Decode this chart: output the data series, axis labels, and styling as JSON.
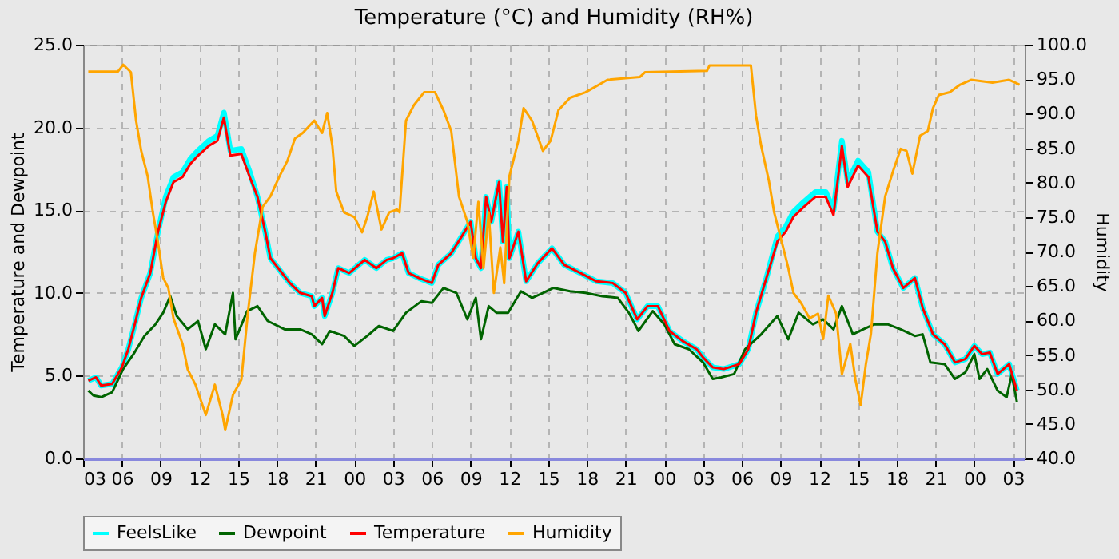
{
  "chart_data": {
    "type": "line",
    "title": "Temperature (°C) and Humidity (RH%)",
    "ylabel": "Temperature and Dewpoint",
    "y2label": "Humidity",
    "xlim": [
      3,
      75.9
    ],
    "xticks": [
      {
        "value": 3,
        "label": "03"
      },
      {
        "value": 6,
        "label": "06"
      },
      {
        "value": 9,
        "label": "09"
      },
      {
        "value": 12,
        "label": "12"
      },
      {
        "value": 15,
        "label": "15"
      },
      {
        "value": 18,
        "label": "18"
      },
      {
        "value": 21,
        "label": "21"
      },
      {
        "value": 24,
        "label": "00"
      },
      {
        "value": 27,
        "label": "03"
      },
      {
        "value": 30,
        "label": "06"
      },
      {
        "value": 33,
        "label": "09"
      },
      {
        "value": 36,
        "label": "12"
      },
      {
        "value": 39,
        "label": "15"
      },
      {
        "value": 42,
        "label": "18"
      },
      {
        "value": 45,
        "label": "21"
      },
      {
        "value": 48,
        "label": "00"
      },
      {
        "value": 51,
        "label": "03"
      },
      {
        "value": 54,
        "label": "06"
      },
      {
        "value": 57,
        "label": "09"
      },
      {
        "value": 60,
        "label": "12"
      },
      {
        "value": 63,
        "label": "15"
      },
      {
        "value": 66,
        "label": "18"
      },
      {
        "value": 69,
        "label": "21"
      },
      {
        "value": 72,
        "label": "00"
      },
      {
        "value": 75,
        "label": "03"
      }
    ],
    "ylim": [
      0,
      25
    ],
    "yticks": [
      {
        "value": 0,
        "label": "0.0"
      },
      {
        "value": 5,
        "label": "5.0"
      },
      {
        "value": 10,
        "label": "10.0"
      },
      {
        "value": 15,
        "label": "15.0"
      },
      {
        "value": 20,
        "label": "20.0"
      },
      {
        "value": 25,
        "label": "25.0"
      }
    ],
    "y2lim": [
      40,
      100
    ],
    "y2ticks": [
      {
        "value": 40,
        "label": "40.0"
      },
      {
        "value": 45,
        "label": "45.0"
      },
      {
        "value": 50,
        "label": "50.0"
      },
      {
        "value": 55,
        "label": "55.0"
      },
      {
        "value": 60,
        "label": "60.0"
      },
      {
        "value": 65,
        "label": "65.0"
      },
      {
        "value": 70,
        "label": "70.0"
      },
      {
        "value": 75,
        "label": "75.0"
      },
      {
        "value": 80,
        "label": "80.0"
      },
      {
        "value": 85,
        "label": "85.0"
      },
      {
        "value": 90,
        "label": "90.0"
      },
      {
        "value": 95,
        "label": "95.0"
      },
      {
        "value": 100,
        "label": "100.0"
      }
    ],
    "grid": true,
    "legend": "bottom",
    "series": [
      {
        "name": "FeelsLike",
        "color": "#00ffff",
        "x": [
          3.4,
          4,
          4.4,
          5.25,
          6,
          6.5,
          7,
          7.5,
          8.2,
          8.8,
          9.4,
          10,
          10.7,
          11.3,
          11.9,
          12.75,
          13.4,
          13.9,
          14.4,
          15.25,
          15.9,
          16.5,
          17.1,
          17.5,
          18.2,
          19,
          19.8,
          20.7,
          20.9,
          21.5,
          21.7,
          22.3,
          22.75,
          23.6,
          24.8,
          25.7,
          26.5,
          27,
          27.7,
          28.2,
          29,
          30,
          30.5,
          31.5,
          32.3,
          33,
          33.4,
          33.8,
          34.2,
          34.6,
          35.2,
          35.5,
          35.8,
          36,
          36.7,
          37.3,
          38.2,
          39.3,
          40.25,
          41.5,
          42.75,
          44,
          45,
          45.9,
          46.7,
          47.5,
          48.4,
          49.4,
          50.5,
          51,
          51.75,
          52.6,
          53.8,
          54.5,
          55.1,
          55.9,
          56.75,
          57.4,
          58,
          58.8,
          59.7,
          60.5,
          61.1,
          61.75,
          62.2,
          63,
          63.8,
          64.5,
          65.1,
          65.7,
          66.5,
          67.4,
          68,
          68.8,
          69.7,
          70.5,
          71.3,
          72,
          72.6,
          73.2,
          73.8,
          74.7,
          75.3
        ],
        "values": [
          4.7,
          4.9,
          4.4,
          4.5,
          5.5,
          6.6,
          8.1,
          9.7,
          11.2,
          13.7,
          15.8,
          17.0,
          17.3,
          18.1,
          18.6,
          19.2,
          19.5,
          20.9,
          18.6,
          18.7,
          17.3,
          15.8,
          13.7,
          12.1,
          11.4,
          10.6,
          10.0,
          9.8,
          9.2,
          9.7,
          8.6,
          10.0,
          11.5,
          11.2,
          12.0,
          11.5,
          12.0,
          12.1,
          12.4,
          11.2,
          10.9,
          10.6,
          11.7,
          12.4,
          13.4,
          14.3,
          12.1,
          11.5,
          15.8,
          14.3,
          16.7,
          13.1,
          16.4,
          12.1,
          13.7,
          10.7,
          11.8,
          12.7,
          11.7,
          11.2,
          10.7,
          10.6,
          10.0,
          8.4,
          9.2,
          9.2,
          7.7,
          7.1,
          6.6,
          6.1,
          5.5,
          5.4,
          5.7,
          6.6,
          8.8,
          10.9,
          13.4,
          14.0,
          14.9,
          15.5,
          16.1,
          16.1,
          15.0,
          19.2,
          16.7,
          18.0,
          17.3,
          13.7,
          13.1,
          11.5,
          10.3,
          10.9,
          9.1,
          7.5,
          6.9,
          5.8,
          6.0,
          6.8,
          6.3,
          6.4,
          5.1,
          5.7,
          4.1
        ]
      },
      {
        "name": "Dewpoint",
        "color": "#006400",
        "x": [
          3.4,
          3.8,
          4.4,
          5.25,
          6.1,
          6.9,
          7.75,
          8.6,
          9.2,
          9.75,
          10.25,
          11.1,
          11.9,
          12.5,
          13.2,
          14,
          14.6,
          14.8,
          15.7,
          16.5,
          17.3,
          18.6,
          19.8,
          20.7,
          21.5,
          22.1,
          23.2,
          24,
          25,
          25.9,
          27,
          28,
          29.2,
          30,
          30.9,
          31.9,
          32.75,
          33.4,
          33.8,
          34.4,
          35,
          35.9,
          36.9,
          37.75,
          38.6,
          39.4,
          40.7,
          41.9,
          43.2,
          44.4,
          45.25,
          46,
          47.1,
          48,
          48.8,
          49.9,
          51,
          51.75,
          52.4,
          53.4,
          54.25,
          55.5,
          56.75,
          57.6,
          58.4,
          59.5,
          60.3,
          61.1,
          61.75,
          62.6,
          63.4,
          64.25,
          65.3,
          66.3,
          67.4,
          68,
          68.6,
          69.7,
          70.5,
          71.3,
          72,
          72.4,
          73,
          73.8,
          74.5,
          74.9,
          75.3
        ],
        "values": [
          4.1,
          3.8,
          3.7,
          4.0,
          5.4,
          6.3,
          7.4,
          8.1,
          8.8,
          9.8,
          8.6,
          7.8,
          8.3,
          6.6,
          8.1,
          7.5,
          10.0,
          7.2,
          8.9,
          9.2,
          8.3,
          7.8,
          7.8,
          7.5,
          6.9,
          7.7,
          7.4,
          6.8,
          7.4,
          8.0,
          7.7,
          8.8,
          9.5,
          9.4,
          10.3,
          10.0,
          8.4,
          9.7,
          7.2,
          9.2,
          8.8,
          8.8,
          10.1,
          9.7,
          10.0,
          10.3,
          10.1,
          10.0,
          9.8,
          9.7,
          8.8,
          7.7,
          8.9,
          8.1,
          6.9,
          6.6,
          5.8,
          4.8,
          4.9,
          5.1,
          6.6,
          7.5,
          8.6,
          7.2,
          8.8,
          8.1,
          8.4,
          7.8,
          9.2,
          7.5,
          7.8,
          8.1,
          8.1,
          7.8,
          7.4,
          7.5,
          5.8,
          5.7,
          4.8,
          5.2,
          6.3,
          4.8,
          5.4,
          4.1,
          3.7,
          5.1,
          3.4
        ]
      },
      {
        "name": "Temperature",
        "color": "#ff0000",
        "x": [
          3.4,
          4,
          4.4,
          5.25,
          6,
          6.5,
          7,
          7.5,
          8.2,
          8.8,
          9.4,
          10,
          10.7,
          11.3,
          11.9,
          12.75,
          13.4,
          13.9,
          14.4,
          15.25,
          15.9,
          16.5,
          17.1,
          17.5,
          18.2,
          19,
          19.8,
          20.7,
          20.9,
          21.5,
          21.7,
          22.3,
          22.75,
          23.6,
          24.8,
          25.7,
          26.5,
          27,
          27.7,
          28.2,
          29,
          30,
          30.5,
          31.5,
          32.3,
          33,
          33.4,
          33.8,
          34.2,
          34.6,
          35.2,
          35.5,
          35.8,
          36,
          36.7,
          37.3,
          38.2,
          39.3,
          40.25,
          41.5,
          42.75,
          44,
          45,
          45.9,
          46.7,
          47.5,
          48.4,
          49.4,
          50.5,
          51,
          51.75,
          52.6,
          53.8,
          54.5,
          55.1,
          55.9,
          56.75,
          57.4,
          58,
          58.8,
          59.7,
          60.5,
          61.1,
          61.75,
          62.2,
          63,
          63.8,
          64.5,
          65.1,
          65.7,
          66.5,
          67.4,
          68,
          68.8,
          69.7,
          70.5,
          71.3,
          72,
          72.6,
          73.2,
          73.8,
          74.7,
          75.3
        ],
        "values": [
          4.7,
          4.9,
          4.4,
          4.5,
          5.5,
          6.6,
          8.1,
          9.7,
          11.2,
          13.7,
          15.5,
          16.7,
          17.0,
          17.8,
          18.3,
          18.9,
          19.2,
          20.6,
          18.3,
          18.4,
          17.0,
          15.8,
          13.7,
          12.1,
          11.4,
          10.6,
          10.0,
          9.8,
          9.2,
          9.7,
          8.6,
          10.0,
          11.5,
          11.2,
          12.0,
          11.5,
          12.0,
          12.1,
          12.4,
          11.2,
          10.9,
          10.6,
          11.7,
          12.4,
          13.4,
          14.3,
          12.1,
          11.5,
          15.8,
          14.3,
          16.7,
          13.1,
          16.4,
          12.1,
          13.7,
          10.7,
          11.8,
          12.7,
          11.7,
          11.2,
          10.7,
          10.6,
          10.0,
          8.4,
          9.2,
          9.2,
          7.7,
          7.1,
          6.6,
          6.1,
          5.5,
          5.4,
          5.7,
          6.6,
          8.8,
          10.9,
          13.1,
          13.7,
          14.6,
          15.2,
          15.8,
          15.8,
          14.7,
          18.9,
          16.4,
          17.7,
          17.0,
          13.7,
          13.1,
          11.5,
          10.3,
          10.9,
          9.1,
          7.5,
          6.9,
          5.8,
          6.0,
          6.8,
          6.3,
          6.4,
          5.1,
          5.7,
          4.1
        ]
      },
      {
        "name": "Humidity",
        "color": "#ffa500",
        "axis": "y2",
        "x": [
          3.4,
          5.7,
          6.1,
          6.7,
          7.1,
          7.5,
          8,
          8.4,
          8.8,
          9.2,
          9.6,
          10,
          10.7,
          11.1,
          11.7,
          12.5,
          13.2,
          13.8,
          14,
          14.6,
          15.25,
          15.75,
          16.3,
          16.9,
          17.5,
          18.2,
          18.8,
          19.4,
          20,
          20.9,
          21.5,
          21.9,
          22.3,
          22.6,
          23.2,
          24,
          24.6,
          25,
          25.5,
          26.1,
          26.7,
          27.3,
          27.5,
          28,
          28.6,
          29.4,
          30.25,
          30.9,
          31.5,
          32.1,
          32.75,
          33.2,
          33.6,
          34,
          34.4,
          34.8,
          35.3,
          35.6,
          36,
          36.7,
          37.1,
          37.75,
          38.6,
          39.2,
          39.8,
          40.7,
          41.9,
          43.6,
          46.1,
          46.5,
          51.3,
          51.5,
          54.7,
          55.1,
          55.5,
          56.1,
          56.5,
          57.2,
          57.6,
          58,
          58.6,
          59.25,
          59.9,
          60.3,
          60.7,
          61.3,
          61.75,
          62.4,
          62.8,
          63.2,
          63.6,
          64,
          64.5,
          65.1,
          65.7,
          66.3,
          66.75,
          67.2,
          67.8,
          68.4,
          68.8,
          69.25,
          70.1,
          70.9,
          71.75,
          73.4,
          74.7,
          75.5
        ],
        "values": [
          96.1,
          96.1,
          97.1,
          96.0,
          89.0,
          84.6,
          80.9,
          75.7,
          71.3,
          66.2,
          64.7,
          60.3,
          56.6,
          52.9,
          50.7,
          46.3,
          50.7,
          46.3,
          44.1,
          49.2,
          51.4,
          61.0,
          69.8,
          76.5,
          78.0,
          80.9,
          83.1,
          86.4,
          87.2,
          89.0,
          87.2,
          90.1,
          85.3,
          78.7,
          75.7,
          75.0,
          72.8,
          75.0,
          78.7,
          73.2,
          75.7,
          76.1,
          75.7,
          89.0,
          91.2,
          93.1,
          93.1,
          90.5,
          87.5,
          78.0,
          74.3,
          69.1,
          77.2,
          67.6,
          75.7,
          64.0,
          70.6,
          65.4,
          80.9,
          86.1,
          90.8,
          89.0,
          84.6,
          86.1,
          90.5,
          92.3,
          93.1,
          94.9,
          95.3,
          96.0,
          96.2,
          97.0,
          97.0,
          89.7,
          85.3,
          80.2,
          75.7,
          70.6,
          67.6,
          64.0,
          62.5,
          60.3,
          61.0,
          57.3,
          63.6,
          61.0,
          52.2,
          56.6,
          51.4,
          47.7,
          53.6,
          58.1,
          69.8,
          78.0,
          81.6,
          84.9,
          84.6,
          81.3,
          86.8,
          87.5,
          90.8,
          92.7,
          93.1,
          94.2,
          94.9,
          94.5,
          94.9,
          94.2
        ]
      }
    ]
  }
}
